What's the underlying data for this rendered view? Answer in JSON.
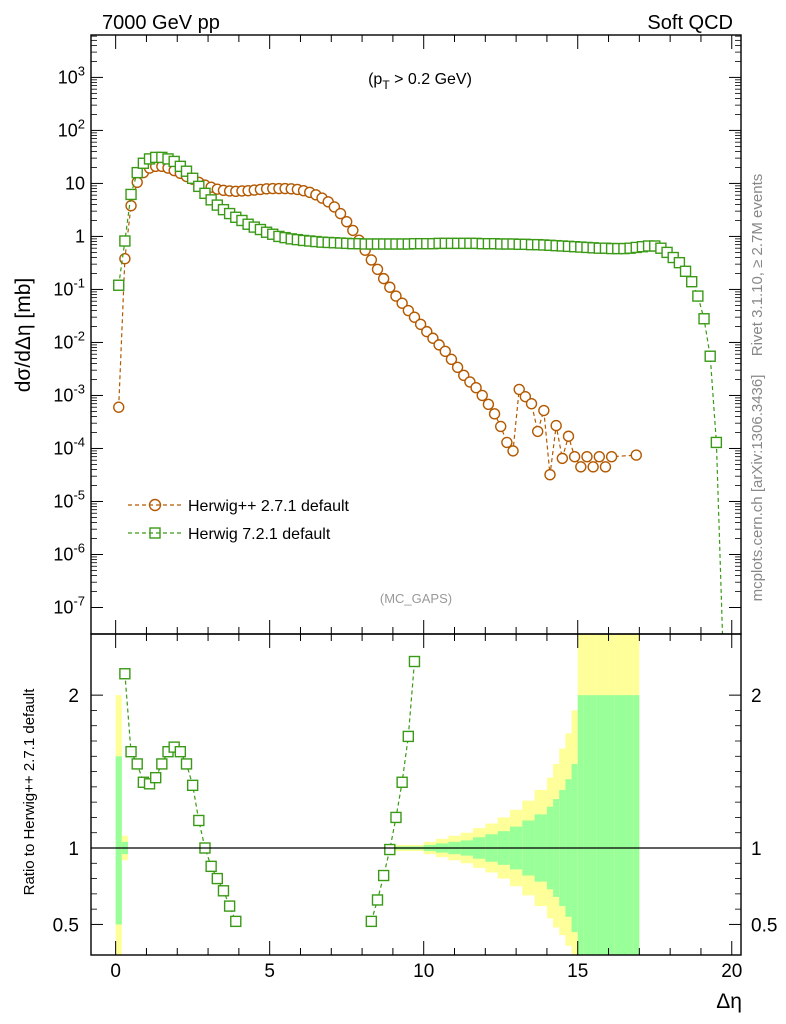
{
  "header": {
    "left": "7000 GeV pp",
    "right": "Soft QCD"
  },
  "side_labels": {
    "rivet": "Rivet 3.1.10, ≥ 2.7M events",
    "mcplots": "mcplots.cern.ch [arXiv:1306.3436]"
  },
  "chart_data": [
    {
      "type": "line",
      "panel": "main",
      "annotation": "(p_T > 0.2 GeV)",
      "watermark": "(MC_GAPS)",
      "ylabel": "dσ/dΔη [mb]",
      "xlim": [
        -0.8,
        20.3
      ],
      "ylim_log10": [
        -7.5,
        3.8
      ],
      "yscale": "log",
      "yticks": [
        {
          "log": 3,
          "label": "10^3"
        },
        {
          "log": 2,
          "label": "10^2"
        },
        {
          "log": 1,
          "label": "10"
        },
        {
          "log": 0,
          "label": "1"
        },
        {
          "log": -1,
          "label": "10^-1"
        },
        {
          "log": -2,
          "label": "10^-2"
        },
        {
          "log": -3,
          "label": "10^-3"
        },
        {
          "log": -4,
          "label": "10^-4"
        },
        {
          "log": -5,
          "label": "10^-5"
        },
        {
          "log": -6,
          "label": "10^-6"
        },
        {
          "log": -7,
          "label": "10^-7"
        }
      ],
      "legend_position": "bottom-left",
      "series": [
        {
          "name": "Herwig++ 2.7.1 default",
          "color": "#b35900",
          "marker": "circle",
          "x": [
            0.1,
            0.3,
            0.5,
            0.7,
            0.9,
            1.1,
            1.3,
            1.5,
            1.7,
            1.9,
            2.1,
            2.3,
            2.5,
            2.7,
            2.9,
            3.1,
            3.3,
            3.5,
            3.7,
            3.9,
            4.1,
            4.3,
            4.5,
            4.7,
            4.9,
            5.1,
            5.3,
            5.5,
            5.7,
            5.9,
            6.1,
            6.3,
            6.5,
            6.7,
            6.9,
            7.1,
            7.3,
            7.5,
            7.7,
            7.9,
            8.1,
            8.3,
            8.5,
            8.7,
            8.9,
            9.1,
            9.3,
            9.5,
            9.7,
            9.9,
            10.1,
            10.3,
            10.5,
            10.7,
            10.9,
            11.1,
            11.3,
            11.5,
            11.7,
            11.9,
            12.1,
            12.3,
            12.5,
            12.7,
            12.9,
            13.1,
            13.3,
            13.5,
            13.7,
            13.9,
            14.1,
            14.3,
            14.5,
            14.7,
            14.9,
            15.1,
            15.3,
            15.5,
            15.7,
            15.9,
            16.1,
            16.9
          ],
          "y": [
            0.0006,
            0.38,
            3.8,
            10.5,
            16,
            19.5,
            21,
            21,
            19.5,
            17.5,
            15.5,
            13.5,
            12,
            10.5,
            9.3,
            8.5,
            7.8,
            7.4,
            7.2,
            7.1,
            7.2,
            7.3,
            7.5,
            7.7,
            7.9,
            8.0,
            8.0,
            8.0,
            7.9,
            7.7,
            7.3,
            6.8,
            6.1,
            5.3,
            4.5,
            3.6,
            2.7,
            1.9,
            1.3,
            0.85,
            0.55,
            0.36,
            0.24,
            0.16,
            0.11,
            0.075,
            0.055,
            0.04,
            0.03,
            0.022,
            0.016,
            0.012,
            0.009,
            0.0068,
            0.0048,
            0.0034,
            0.0024,
            0.0018,
            0.0014,
            0.001,
            0.00068,
            0.00045,
            0.00026,
            0.00013,
            9e-05,
            0.0013,
            0.00095,
            0.0007,
            0.00021,
            0.00052,
            3.2e-05,
            0.00027,
            6.5e-05,
            0.00017,
            7e-05,
            4.5e-05,
            7e-05,
            4.5e-05,
            7e-05,
            4.5e-05,
            7e-05,
            7.5e-05
          ]
        },
        {
          "name": "Herwig 7.2.1 default",
          "color": "#3a9a16",
          "marker": "square",
          "x": [
            0.1,
            0.3,
            0.5,
            0.7,
            0.9,
            1.1,
            1.3,
            1.5,
            1.7,
            1.9,
            2.1,
            2.3,
            2.5,
            2.7,
            2.9,
            3.1,
            3.3,
            3.5,
            3.7,
            3.9,
            4.1,
            4.3,
            4.5,
            4.7,
            4.9,
            5.1,
            5.3,
            5.5,
            5.7,
            5.9,
            6.1,
            6.3,
            6.5,
            6.7,
            6.9,
            7.1,
            7.3,
            7.5,
            7.7,
            7.9,
            8.1,
            8.3,
            8.5,
            8.7,
            8.9,
            9.1,
            9.3,
            9.5,
            9.7,
            9.9,
            10.1,
            10.3,
            10.5,
            10.7,
            10.9,
            11.1,
            11.3,
            11.5,
            11.7,
            11.9,
            12.1,
            12.3,
            12.5,
            12.7,
            12.9,
            13.1,
            13.3,
            13.5,
            13.7,
            13.9,
            14.1,
            14.3,
            14.5,
            14.7,
            14.9,
            15.1,
            15.3,
            15.5,
            15.7,
            15.9,
            16.1,
            16.3,
            16.5,
            16.7,
            16.9,
            17.1,
            17.3,
            17.5,
            17.7,
            17.9,
            18.1,
            18.3,
            18.5,
            18.7,
            18.9,
            19.1,
            19.3,
            19.5,
            19.7
          ],
          "y": [
            0.12,
            0.82,
            6.2,
            16,
            24,
            29,
            31,
            31,
            29,
            26,
            21,
            17,
            12.5,
            8.8,
            6.5,
            4.9,
            3.9,
            3.2,
            2.7,
            2.3,
            2.0,
            1.7,
            1.5,
            1.35,
            1.2,
            1.1,
            1.0,
            0.95,
            0.9,
            0.87,
            0.84,
            0.82,
            0.8,
            0.78,
            0.77,
            0.76,
            0.75,
            0.74,
            0.73,
            0.73,
            0.72,
            0.72,
            0.72,
            0.72,
            0.72,
            0.72,
            0.72,
            0.72,
            0.73,
            0.73,
            0.73,
            0.73,
            0.74,
            0.74,
            0.74,
            0.74,
            0.74,
            0.74,
            0.74,
            0.73,
            0.73,
            0.73,
            0.72,
            0.72,
            0.72,
            0.71,
            0.71,
            0.7,
            0.7,
            0.69,
            0.68,
            0.67,
            0.66,
            0.65,
            0.64,
            0.63,
            0.62,
            0.61,
            0.6,
            0.6,
            0.59,
            0.59,
            0.59,
            0.6,
            0.62,
            0.64,
            0.66,
            0.66,
            0.6,
            0.5,
            0.4,
            0.32,
            0.22,
            0.14,
            0.075,
            0.028,
            0.0055,
            0.00013,
            0.0
          ]
        }
      ]
    },
    {
      "type": "line",
      "panel": "ratio",
      "ylabel": "Ratio to Herwig++ 2.7.1 default",
      "xlabel": "Δη",
      "xlim": [
        -0.8,
        20.3
      ],
      "ylim": [
        0.3,
        2.4
      ],
      "yticks": [
        0.5,
        1,
        2
      ],
      "ytick_labels": [
        "0.5",
        "1",
        "2"
      ],
      "xticks": [
        0,
        5,
        10,
        15,
        20
      ],
      "xtick_labels": [
        "0",
        "5",
        "10",
        "15",
        "20"
      ],
      "reference_line": 1,
      "series": [
        {
          "name": "Herwig 7.2.1 default",
          "color": "#3a9a16",
          "marker": "square",
          "x": [
            0.3,
            0.5,
            0.7,
            0.9,
            1.1,
            1.3,
            1.5,
            1.7,
            1.9,
            2.1,
            2.3,
            2.5,
            2.7,
            2.9,
            3.1,
            3.3,
            3.5,
            3.7,
            3.9,
            8.3,
            8.5,
            8.7,
            8.9,
            9.1,
            9.3,
            9.5,
            9.7
          ],
          "y": [
            2.14,
            1.63,
            1.55,
            1.43,
            1.42,
            1.46,
            1.55,
            1.63,
            1.66,
            1.63,
            1.55,
            1.41,
            1.18,
            1.0,
            0.88,
            0.8,
            0.72,
            0.62,
            0.52,
            0.52,
            0.66,
            0.82,
            0.99,
            1.2,
            1.43,
            1.73,
            2.22
          ]
        }
      ],
      "uncertainty_bands": {
        "x_edges": [
          0.0,
          0.2,
          0.4,
          8.0,
          9.0,
          10.0,
          10.4,
          10.8,
          11.2,
          11.6,
          12.0,
          12.4,
          12.8,
          13.2,
          13.6,
          14.0,
          14.2,
          14.4,
          14.6,
          14.8,
          15.0,
          15.2,
          15.4,
          15.6,
          16.0,
          16.2,
          16.8,
          17.0
        ],
        "yellow_upper": [
          2.0,
          1.08,
          1.0,
          1.0,
          1.02,
          1.04,
          1.06,
          1.08,
          1.1,
          1.13,
          1.16,
          1.2,
          1.25,
          1.31,
          1.38,
          1.46,
          1.55,
          1.65,
          1.75,
          1.9,
          2.4,
          2.4,
          2.4,
          2.4,
          2.4,
          2.4,
          2.4,
          2.4
        ],
        "yellow_lower": [
          0.3,
          0.92,
          1.0,
          1.0,
          0.98,
          0.96,
          0.94,
          0.92,
          0.9,
          0.87,
          0.84,
          0.8,
          0.75,
          0.69,
          0.62,
          0.54,
          0.48,
          0.43,
          0.36,
          0.3,
          0.3,
          0.3,
          0.3,
          0.3,
          0.3,
          0.3,
          0.3,
          0.3
        ],
        "green_upper": [
          1.6,
          1.04,
          1.0,
          1.0,
          1.01,
          1.02,
          1.03,
          1.04,
          1.05,
          1.07,
          1.09,
          1.11,
          1.14,
          1.18,
          1.22,
          1.27,
          1.32,
          1.38,
          1.45,
          1.55,
          2.0,
          2.0,
          2.0,
          2.0,
          2.0,
          2.0,
          2.0,
          2.0
        ],
        "green_lower": [
          0.5,
          0.96,
          1.0,
          1.0,
          0.99,
          0.98,
          0.97,
          0.96,
          0.95,
          0.93,
          0.91,
          0.89,
          0.86,
          0.82,
          0.78,
          0.73,
          0.68,
          0.62,
          0.55,
          0.45,
          0.3,
          0.3,
          0.3,
          0.3,
          0.3,
          0.3,
          0.3,
          0.3
        ]
      }
    }
  ]
}
